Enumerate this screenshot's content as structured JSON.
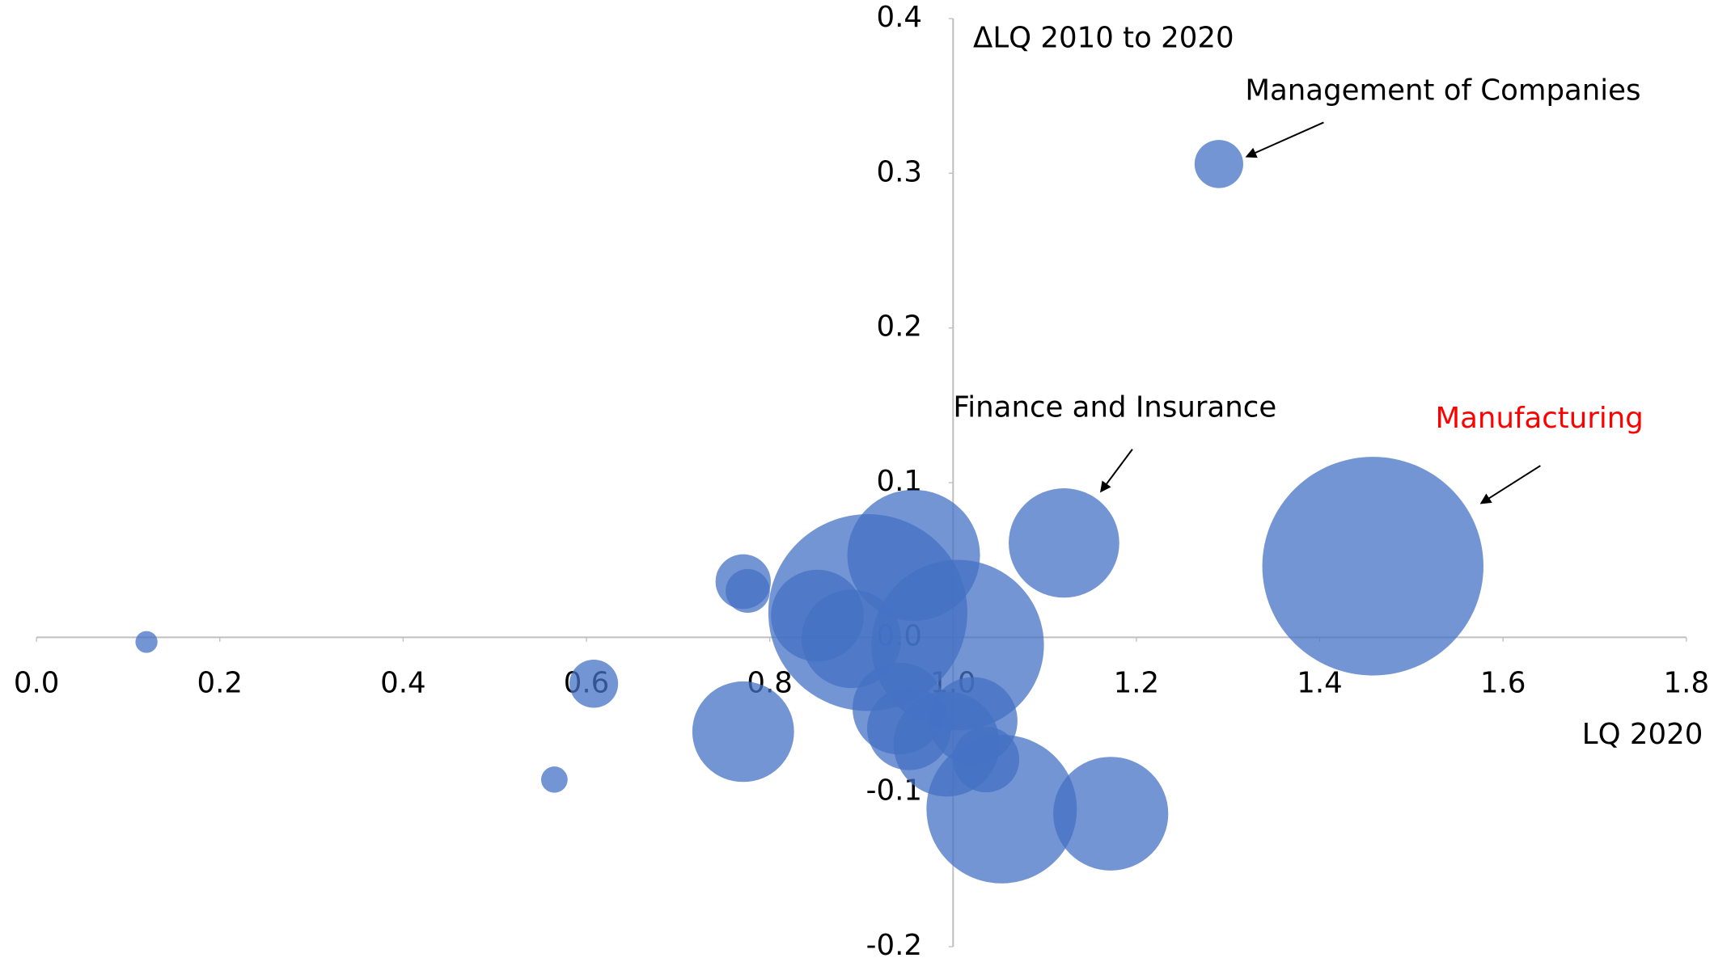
{
  "chart_data": {
    "type": "bubble",
    "x_label": "LQ 2020",
    "y_label": "ΔLQ 2010 to  2020",
    "color": "#4472c4",
    "x": [
      0.12,
      0.608,
      0.565,
      0.771,
      0.776,
      0.771,
      0.852,
      0.907,
      0.957,
      0.889,
      1.005,
      1.121,
      1.29,
      1.458,
      0.941,
      0.952,
      0.993,
      1.022,
      1.036,
      1.053,
      1.172
    ],
    "values": [
      -0.003,
      -0.03,
      -0.092,
      0.036,
      0.03,
      -0.061,
      0.014,
      0.016,
      0.053,
      -0.001,
      -0.005,
      0.061,
      0.306,
      0.046,
      -0.046,
      -0.059,
      -0.069,
      -0.054,
      -0.079,
      -0.111,
      -0.114
    ],
    "sizes": [
      10,
      22,
      12,
      25,
      20,
      46,
      42,
      90,
      60,
      45,
      78,
      50,
      22,
      100,
      42,
      38,
      48,
      40,
      30,
      68,
      52
    ],
    "xlim": [
      0,
      1.8
    ],
    "ylim": [
      -0.2,
      0.4
    ],
    "xticks": [
      {
        "value": 0,
        "label": "0.0"
      },
      0.2,
      0.4,
      0.6,
      0.8,
      {
        "value": 1,
        "label": "1.0"
      },
      1.2,
      1.4,
      1.6,
      1.8
    ],
    "yticks": [
      -0.2,
      -0.1,
      {
        "value": 0,
        "label": "0.0"
      },
      0.1,
      0.2,
      0.3,
      0.4
    ],
    "annotations": [
      {
        "text": "Management of Companies",
        "color": "#000000"
      },
      {
        "text": "Finance and Insurance",
        "color": "#000000"
      },
      {
        "text": "Manufacturing",
        "color": "#ff0000"
      }
    ]
  }
}
